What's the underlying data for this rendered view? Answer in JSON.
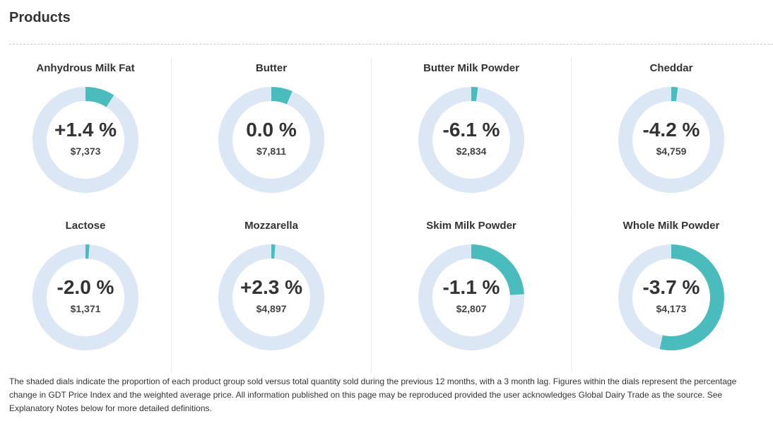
{
  "section": {
    "title": "Products"
  },
  "colors": {
    "track": "#dce7f5",
    "fill": "#4bbcbd",
    "text": "#333333"
  },
  "products": [
    {
      "name": "Anhydrous Milk Fat",
      "change": "+1.4 %",
      "price": "$7,373",
      "share": 0.09
    },
    {
      "name": "Butter",
      "change": "0.0  %",
      "price": "$7,811",
      "share": 0.065
    },
    {
      "name": "Butter Milk Powder",
      "change": "-6.1 %",
      "price": "$2,834",
      "share": 0.02
    },
    {
      "name": "Cheddar",
      "change": "-4.2 %",
      "price": "$4,759",
      "share": 0.02
    },
    {
      "name": "Lactose",
      "change": "-2.0 %",
      "price": "$1,371",
      "share": 0.012
    },
    {
      "name": "Mozzarella",
      "change": "+2.3 %",
      "price": "$4,897",
      "share": 0.012
    },
    {
      "name": "Skim Milk Powder",
      "change": "-1.1 %",
      "price": "$2,807",
      "share": 0.24
    },
    {
      "name": "Whole Milk Powder",
      "change": "-3.7 %",
      "price": "$4,173",
      "share": 0.535
    }
  ],
  "footnote": "The shaded dials indicate the proportion of each product group sold versus total quantity sold during the previous 12 months, with a 3 month lag. Figures within the dials represent the percentage change in GDT Price Index and the weighted average price. All information published on this page may be reproduced provided the user acknowledges Global Dairy Trade as the source. See Explanatory Notes below for more detailed definitions."
}
